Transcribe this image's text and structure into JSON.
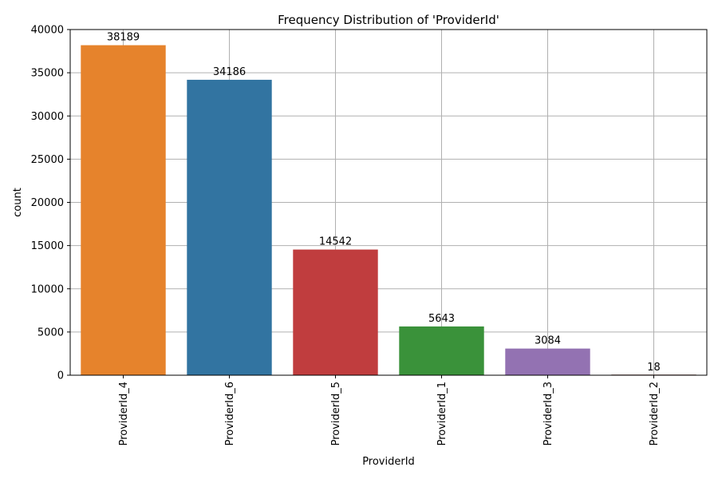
{
  "chart_data": {
    "type": "bar",
    "title": "Frequency Distribution of 'ProviderId'",
    "xlabel": "ProviderId",
    "ylabel": "count",
    "categories": [
      "ProviderId_4",
      "ProviderId_6",
      "ProviderId_5",
      "ProviderId_1",
      "ProviderId_3",
      "ProviderId_2"
    ],
    "values": [
      38189,
      34186,
      14542,
      5643,
      3084,
      18
    ],
    "data_labels": [
      "38189",
      "34186",
      "14542",
      "5643",
      "3084",
      "18"
    ],
    "colors": [
      "#e6832c",
      "#3274a1",
      "#c03d3e",
      "#3a923a",
      "#9372b2",
      "#845b53"
    ],
    "yticks": [
      0,
      5000,
      10000,
      15000,
      20000,
      25000,
      30000,
      35000,
      40000
    ],
    "ylim": [
      0,
      40000
    ],
    "grid": true,
    "legend": "none"
  }
}
